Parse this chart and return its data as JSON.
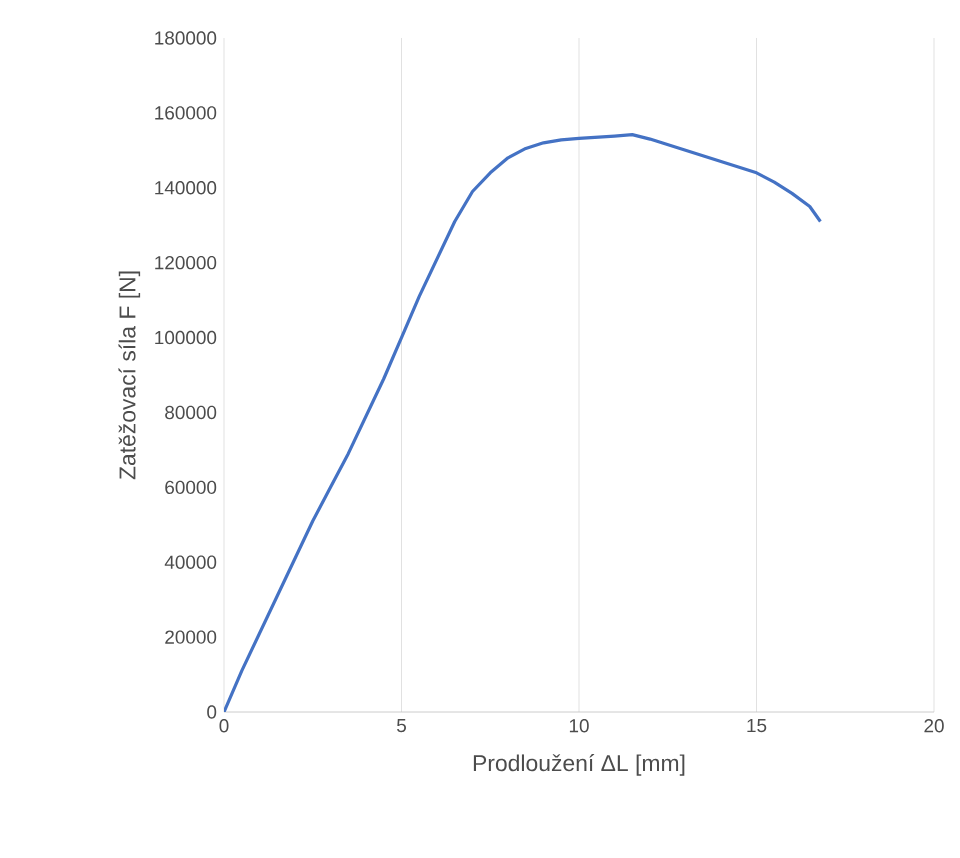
{
  "chart_data": {
    "type": "line",
    "xlabel": "Prodloužení ΔL [mm]",
    "ylabel": "Zatěžovací síla F [N]",
    "x": [
      0,
      0.5,
      1,
      1.5,
      2,
      2.5,
      3,
      3.5,
      4,
      4.5,
      5,
      5.5,
      6,
      6.5,
      7,
      7.5,
      8,
      8.5,
      9,
      9.5,
      10,
      11,
      11.5,
      12,
      13,
      14,
      15,
      15.5,
      16,
      16.5,
      16.8
    ],
    "series": [
      {
        "color": "#4472c4",
        "values": [
          0,
          11000,
          21000,
          31000,
          41000,
          51000,
          60000,
          69000,
          79000,
          89000,
          100000,
          111000,
          121000,
          131000,
          139000,
          144000,
          148000,
          150500,
          152000,
          152800,
          153200,
          153800,
          154200,
          153000,
          150000,
          147000,
          144000,
          141500,
          138500,
          135000,
          131000
        ]
      }
    ],
    "xlim": [
      0,
      20
    ],
    "ylim": [
      0,
      180000
    ],
    "xticks": [
      0,
      5,
      10,
      15,
      20
    ],
    "yticks": [
      0,
      20000,
      40000,
      60000,
      80000,
      100000,
      120000,
      140000,
      160000,
      180000
    ],
    "grid": "x",
    "marker": "none",
    "line_style": "solid"
  }
}
